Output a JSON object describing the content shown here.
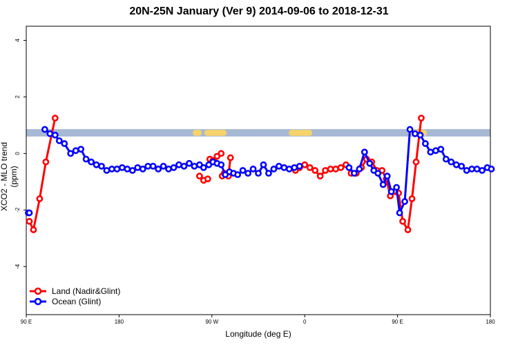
{
  "chart_data": {
    "type": "line",
    "title": "20N-25N January (Ver 9)   2014-09-06 to 2018-12-31",
    "xlabel": "Longitude (deg E)",
    "ylabel": "XCO2 - MLO trend (ppm)",
    "x_ticks": [
      {
        "value": 90,
        "label": "90 E"
      },
      {
        "value": 180,
        "label": "180"
      },
      {
        "value": 270,
        "label": "90 W"
      },
      {
        "value": 360,
        "label": "0"
      },
      {
        "value": 450,
        "label": "90 E"
      },
      {
        "value": 540,
        "label": "180"
      }
    ],
    "xlim": [
      90,
      540
    ],
    "y_ticks": [
      -4,
      -2,
      0,
      2,
      4
    ],
    "ylim": [
      -5.7,
      4.5
    ],
    "grid": false,
    "legend_position": "bottom-left",
    "band": {
      "y_range": [
        0.6,
        0.86
      ],
      "ocean_color": "#a6b8d4",
      "land_color": "#f6d36b"
    },
    "series": [
      {
        "name": "Land (Nadir&Glint)",
        "color": "#ff0000",
        "x": [
          93,
          97,
          103,
          109,
          118,
          351,
          355,
          360,
          365,
          370,
          375,
          380,
          385,
          390,
          395,
          400,
          405,
          410,
          415,
          420,
          425,
          430,
          435,
          439,
          443,
          448,
          451,
          455,
          460,
          464,
          468,
          473
        ],
        "y": [
          -2.4,
          -2.7,
          -1.6,
          -0.3,
          1.25,
          -0.6,
          -0.5,
          -0.4,
          -0.5,
          -0.6,
          -0.8,
          -0.6,
          -0.55,
          -0.55,
          -0.5,
          -0.4,
          -0.7,
          -0.7,
          -0.5,
          -0.2,
          -0.3,
          -0.6,
          -0.6,
          -0.9,
          -1.5,
          -1.35,
          -1.4,
          -2.4,
          -2.7,
          -1.6,
          -0.3,
          1.25
        ],
        "segments": [
          {
            "x": [
              258,
              262,
              266
            ],
            "y": [
              -0.8,
              -0.95,
              -0.9
            ]
          },
          {
            "x": [
              268,
              272
            ],
            "y": [
              -0.2,
              -0.25
            ]
          },
          {
            "x": [
              280,
              282
            ],
            "y": [
              -0.8,
              -0.7
            ]
          },
          {
            "x": [
              286,
              288
            ],
            "y": [
              -0.8,
              -0.15
            ]
          },
          {
            "x": [
              271,
              275,
              279
            ],
            "y": [
              -0.25,
              -0.1,
              0.0
            ]
          }
        ]
      },
      {
        "name": "Ocean (Glint)",
        "color": "#0000ff",
        "x": [
          92,
          108,
          113,
          118,
          122,
          127,
          133,
          138,
          143,
          148,
          153,
          158,
          163,
          168,
          173,
          178,
          183,
          188,
          193,
          198,
          203,
          208,
          213,
          218,
          223,
          228,
          233,
          238,
          243,
          248,
          253,
          258,
          262,
          267,
          271,
          275,
          279,
          283,
          287,
          291,
          295,
          300,
          305,
          310,
          315,
          320,
          325,
          330,
          335,
          340,
          345,
          350,
          355
        ],
        "y": [
          -2.1,
          0.85,
          0.7,
          0.65,
          0.45,
          0.35,
          0.0,
          0.1,
          0.15,
          -0.2,
          -0.3,
          -0.4,
          -0.45,
          -0.6,
          -0.55,
          -0.55,
          -0.5,
          -0.55,
          -0.6,
          -0.5,
          -0.55,
          -0.45,
          -0.45,
          -0.55,
          -0.45,
          -0.55,
          -0.5,
          -0.4,
          -0.45,
          -0.35,
          -0.45,
          -0.4,
          -0.5,
          -0.4,
          -0.3,
          -0.35,
          -0.4,
          -0.75,
          -0.65,
          -0.7,
          -0.75,
          -0.6,
          -0.7,
          -0.55,
          -0.7,
          -0.4,
          -0.7,
          -0.55,
          -0.45,
          -0.5,
          -0.55,
          -0.5,
          -0.45
        ]
      },
      {
        "name": "Ocean (Glint)",
        "color": "#0000ff",
        "x": [
          403,
          408,
          413,
          418,
          423,
          427,
          431,
          436,
          440,
          444,
          449,
          452,
          457,
          462,
          467,
          472,
          477,
          482,
          487,
          492,
          497,
          502,
          507,
          512,
          517,
          522,
          527,
          532,
          537,
          541
        ],
        "y": [
          -0.5,
          -0.7,
          -0.55,
          0.05,
          -0.35,
          -0.6,
          -0.7,
          -1.1,
          -0.8,
          -1.35,
          -1.2,
          -2.1,
          -1.7,
          0.85,
          0.7,
          0.65,
          0.35,
          0.05,
          0.1,
          0.15,
          -0.2,
          -0.3,
          -0.4,
          -0.45,
          -0.6,
          -0.55,
          -0.55,
          -0.6,
          -0.5,
          -0.55
        ]
      }
    ]
  }
}
